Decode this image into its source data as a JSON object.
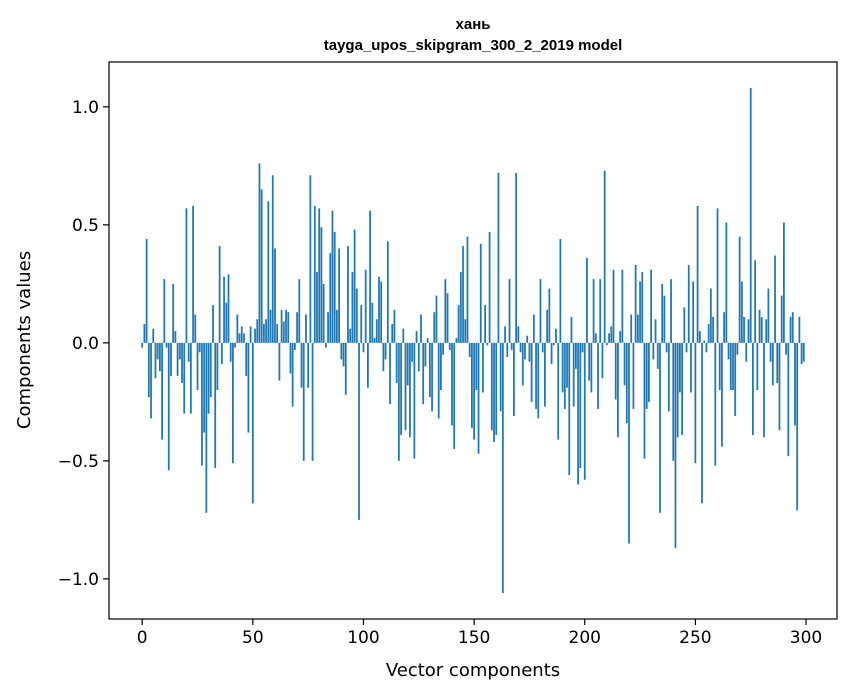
{
  "chart_data": {
    "type": "bar",
    "title": "хань",
    "subtitle": "tayga_upos_skipgram_300_2_2019 model",
    "xlabel": "Vector components",
    "ylabel": "Components values",
    "xlim": [
      -15,
      314
    ],
    "ylim": [
      -1.17,
      1.19
    ],
    "xticks": [
      0,
      50,
      100,
      150,
      200,
      250,
      300
    ],
    "xtick_labels": [
      "0",
      "50",
      "100",
      "150",
      "200",
      "250",
      "300"
    ],
    "yticks": [
      -1.0,
      -0.5,
      0.0,
      0.5,
      1.0
    ],
    "ytick_labels": [
      "−1.0",
      "−0.5",
      "0.0",
      "0.5",
      "1.0"
    ],
    "values": [
      -0.02,
      0.08,
      0.44,
      -0.23,
      -0.32,
      0.06,
      -0.15,
      -0.07,
      -0.12,
      -0.41,
      0.27,
      -0.02,
      -0.54,
      -0.14,
      0.25,
      0.05,
      -0.14,
      -0.07,
      -0.17,
      -0.3,
      0.57,
      -0.08,
      -0.3,
      0.58,
      0.12,
      -0.2,
      -0.04,
      -0.52,
      -0.38,
      -0.72,
      -0.3,
      -0.23,
      0.16,
      -0.53,
      -0.2,
      0.41,
      -0.09,
      0.28,
      0.17,
      0.29,
      -0.08,
      -0.51,
      -0.02,
      0.12,
      0.04,
      0.07,
      0.04,
      -0.14,
      -0.38,
      0.07,
      -0.68,
      0.06,
      0.1,
      0.76,
      0.65,
      0.08,
      0.1,
      0.6,
      0.14,
      0.71,
      0.4,
      0.08,
      -0.16,
      0.14,
      0.09,
      0.14,
      0.13,
      -0.13,
      -0.27,
      -0.03,
      0.13,
      0.27,
      -0.19,
      -0.5,
      0.12,
      -0.19,
      0.71,
      -0.5,
      0.58,
      0.3,
      0.57,
      0.49,
      0.25,
      -0.02,
      0.13,
      0.38,
      0.56,
      0.47,
      0.14,
      0.4,
      -0.07,
      -0.1,
      -0.22,
      0.41,
      0.06,
      0.3,
      0.48,
      0.23,
      -0.75,
      0.16,
      -0.04,
      0.31,
      -0.19,
      0.56,
      0.17,
      0.02,
      0.1,
      0.28,
      0.26,
      -0.12,
      -0.07,
      0.43,
      -0.26,
      0.08,
      0.14,
      -0.17,
      -0.5,
      -0.39,
      0.06,
      -0.37,
      -0.18,
      -0.4,
      -0.08,
      -0.49,
      0.05,
      -0.12,
      0.12,
      -0.26,
      -0.1,
      0.02,
      -0.23,
      -0.29,
      0.13,
      0.2,
      -0.32,
      -0.2,
      -0.05,
      0.27,
      0.21,
      -0.03,
      -0.35,
      -0.45,
      0.02,
      0.16,
      0.3,
      0.41,
      0.1,
      0.45,
      -0.06,
      -0.36,
      -0.41,
      -0.2,
      -0.47,
      0.42,
      -0.21,
      0.16,
      -0.01,
      0.47,
      -0.37,
      -0.42,
      -0.39,
      0.72,
      -0.29,
      -1.06,
      0.07,
      -0.06,
      0.27,
      -0.03,
      -0.31,
      0.72,
      0.07,
      -0.04,
      -0.18,
      -0.07,
      0.03,
      -0.08,
      -0.25,
      0.12,
      -0.28,
      -0.32,
      0.27,
      -0.04,
      -0.27,
      0.14,
      0.23,
      -0.09,
      -0.01,
      0.06,
      -0.41,
      0.44,
      -0.21,
      -0.28,
      -0.19,
      -0.56,
      0.11,
      -0.27,
      -0.11,
      -0.6,
      -0.53,
      -0.04,
      -0.58,
      0.36,
      -0.16,
      -0.21,
      0.27,
      0.04,
      -0.28,
      0.27,
      -0.15,
      0.73,
      -0.01,
      0.04,
      0.07,
      0.31,
      -0.24,
      -0.4,
      0.05,
      0.31,
      -0.18,
      -0.34,
      -0.85,
      0.12,
      -0.28,
      0.33,
      0.12,
      0.26,
      0.3,
      -0.49,
      -0.28,
      -0.25,
      0.31,
      -0.07,
      0.1,
      -0.11,
      -0.72,
      0.25,
      0.2,
      -0.04,
      -0.29,
      0.27,
      -0.5,
      -0.87,
      -0.4,
      -0.21,
      -0.39,
      0.15,
      -0.04,
      0.33,
      -0.21,
      0.26,
      -0.51,
      0.58,
      0.05,
      -0.68,
      0.01,
      -0.04,
      0.08,
      0.23,
      0.11,
      -0.52,
      0.57,
      -0.2,
      -0.44,
      0.13,
      0.51,
      -0.07,
      -0.2,
      -0.2,
      -0.31,
      -0.05,
      0.45,
      0.26,
      0.11,
      -0.08,
      0.1,
      1.08,
      -0.39,
      0.35,
      -0.2,
      0.14,
      0.11,
      -0.4,
      0.1,
      0.23,
      -0.08,
      -0.18,
      0.37,
      -0.17,
      -0.37,
      0.2,
      0.51,
      -0.05,
      -0.48,
      0.11,
      0.13,
      -0.35,
      -0.71,
      0.11,
      -0.09,
      -0.08
    ]
  }
}
